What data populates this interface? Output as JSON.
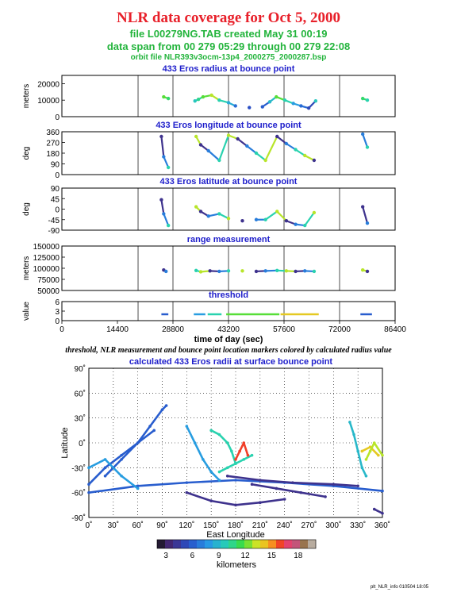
{
  "header": {
    "title": "NLR data coverage for Oct 5, 2000",
    "file_line": "file L00279NG.TAB created May 31 00:19",
    "span_line": "data span from 00 279 05:29 through 00 279 22:08",
    "orbit_line": "orbit file NLR393v3ocm-13p4_2000275_2000287.bsp"
  },
  "caption": "threshold, NLR measurement and bounce point location markers colored by calculated radius value",
  "footer": "plt_NLR_info 010504 18:05",
  "colors": {
    "title": "#e8202a",
    "subtitle": "#23b43c",
    "panel_title": "#1e1ecb"
  },
  "chart_data": [
    {
      "type": "scatter",
      "title": "433 Eros radius at bounce point",
      "ylabel": "meters",
      "ylim": [
        0,
        25000
      ],
      "yticks": [
        0,
        10000,
        20000
      ],
      "xlim": [
        0,
        86400
      ],
      "vlines": [
        19752,
        28800,
        43200,
        57600,
        72000
      ],
      "series": [
        {
          "x": [
            26400,
            27600,
            34500,
            35400,
            36600,
            38800,
            40800,
            43200,
            45000,
            48600,
            52000,
            53900,
            55600,
            57800,
            60000,
            62000,
            64000,
            65800,
            78000,
            79200
          ],
          "y": [
            12000,
            11000,
            9500,
            10500,
            12000,
            13000,
            10000,
            8500,
            6500,
            5500,
            6000,
            9000,
            12000,
            10000,
            8000,
            6500,
            5200,
            9500,
            11000,
            10000
          ],
          "color_by": "radius_km"
        }
      ]
    },
    {
      "type": "scatter",
      "title": "433 Eros longitude at bounce point",
      "ylabel": "deg",
      "ylim": [
        0,
        360
      ],
      "yticks": [
        0,
        90,
        180,
        270,
        360
      ],
      "xlim": [
        0,
        86400
      ],
      "vlines": [
        19752,
        28800,
        43200,
        57600,
        72000
      ],
      "series": [
        {
          "x": [
            25800,
            26400,
            27600,
            34800,
            36000,
            38000,
            40800,
            43200,
            45600,
            48000,
            50400,
            52800,
            55800,
            58200,
            60600,
            63000,
            65400,
            78000,
            79200
          ],
          "y": [
            320,
            150,
            60,
            320,
            250,
            200,
            120,
            330,
            300,
            240,
            180,
            120,
            320,
            260,
            210,
            160,
            120,
            340,
            230
          ],
          "color_by": "radius_km"
        }
      ]
    },
    {
      "type": "scatter",
      "title": "433 Eros latitude at bounce point",
      "ylabel": "deg",
      "ylim": [
        -90,
        90
      ],
      "yticks": [
        -90,
        -45,
        0,
        45,
        90
      ],
      "xlim": [
        0,
        86400
      ],
      "vlines": [
        19752,
        28800,
        43200,
        57600,
        72000
      ],
      "series": [
        {
          "x": [
            25800,
            26400,
            27600,
            34800,
            36000,
            38000,
            40800,
            43200,
            46800,
            50400,
            52800,
            55800,
            58200,
            60600,
            63000,
            65400,
            78000,
            79200
          ],
          "y": [
            40,
            -20,
            -70,
            10,
            -10,
            -30,
            -20,
            -40,
            -50,
            -45,
            -45,
            -10,
            -50,
            -65,
            -70,
            -15,
            10,
            -60
          ],
          "color_by": "radius_km"
        }
      ]
    },
    {
      "type": "scatter",
      "title": "range measurement",
      "ylabel": "meters",
      "ylim": [
        50000,
        150000
      ],
      "yticks": [
        50000,
        75000,
        100000,
        125000,
        150000
      ],
      "xlim": [
        0,
        86400
      ],
      "vlines": [
        19752,
        28800,
        43200,
        57600,
        72000
      ],
      "series": [
        {
          "x": [
            26400,
            27000,
            34800,
            36000,
            38400,
            40800,
            43200,
            46800,
            50400,
            52800,
            55800,
            58200,
            60600,
            63000,
            65400,
            78000,
            79200
          ],
          "y": [
            96000,
            93000,
            95000,
            92000,
            94000,
            93000,
            94000,
            94000,
            93000,
            94000,
            95000,
            94000,
            93000,
            94000,
            93000,
            96000,
            93000
          ],
          "color_by": "radius_km"
        }
      ]
    },
    {
      "type": "scatter",
      "title": "threshold",
      "ylabel": "value",
      "xlabel": "time of day (sec)",
      "ylim": [
        0,
        6
      ],
      "yticks": [
        0,
        3,
        6
      ],
      "xlim": [
        0,
        86400
      ],
      "xticks": [
        0,
        14400,
        28800,
        43200,
        57600,
        72000,
        86400
      ],
      "vlines": [
        19752,
        28800,
        43200,
        57600,
        72000
      ],
      "series": [
        {
          "segments": [
            [
              25800,
              27600
            ],
            [
              34200,
              37200
            ],
            [
              37800,
              41400
            ],
            [
              42600,
              56400
            ],
            [
              56700,
              66600
            ],
            [
              77400,
              80400
            ]
          ],
          "y": 2,
          "color_by": "radius_km"
        }
      ]
    },
    {
      "type": "scatter",
      "title": "calculated 433 Eros radii at surface bounce point",
      "xlabel": "East Longitude",
      "ylabel": "Latitude",
      "xlim": [
        0,
        360
      ],
      "ylim": [
        -90,
        90
      ],
      "xticks": [
        "0˚",
        "30˚",
        "60˚",
        "90˚",
        "120˚",
        "150˚",
        "180˚",
        "210˚",
        "240˚",
        "270˚",
        "300˚",
        "330˚",
        "360˚"
      ],
      "yticks": [
        "90˚",
        "60˚",
        "30˚",
        "0˚",
        "-30˚",
        "-60˚",
        "-90˚"
      ],
      "grid": true,
      "tracks": [
        {
          "lon": [
            20,
            40,
            60,
            75,
            90,
            95
          ],
          "lat": [
            -40,
            -20,
            0,
            20,
            40,
            45
          ],
          "radius_km": 6
        },
        {
          "lon": [
            0,
            20,
            40,
            60,
            80
          ],
          "lat": [
            -50,
            -30,
            -15,
            0,
            15
          ],
          "radius_km": 6
        },
        {
          "lon": [
            0,
            60,
            120,
            180,
            240,
            300,
            360
          ],
          "lat": [
            -60,
            -52,
            -48,
            -45,
            -48,
            -52,
            -58
          ],
          "radius_km": 6
        },
        {
          "lon": [
            200,
            230,
            260,
            290
          ],
          "lat": [
            -50,
            -55,
            -60,
            -65
          ],
          "radius_km": 4
        },
        {
          "lon": [
            170,
            210,
            250,
            300,
            330
          ],
          "lat": [
            -40,
            -45,
            -48,
            -50,
            -52
          ],
          "radius_km": 4
        },
        {
          "lon": [
            120,
            150,
            180,
            210,
            240
          ],
          "lat": [
            -60,
            -70,
            -75,
            -72,
            -68
          ],
          "radius_km": 4
        },
        {
          "lon": [
            0,
            20,
            40,
            60
          ],
          "lat": [
            -30,
            -20,
            -40,
            -55
          ],
          "radius_km": 8
        },
        {
          "lon": [
            120,
            130,
            140,
            150,
            160
          ],
          "lat": [
            20,
            0,
            -20,
            -35,
            -45
          ],
          "radius_km": 8
        },
        {
          "lon": [
            150,
            160,
            170,
            175,
            180
          ],
          "lat": [
            15,
            10,
            0,
            -10,
            -25
          ],
          "radius_km": 10
        },
        {
          "lon": [
            160,
            170,
            180,
            190,
            200
          ],
          "lat": [
            -35,
            -30,
            -25,
            -20,
            -15
          ],
          "radius_km": 10
        },
        {
          "lon": [
            320,
            325,
            330,
            335,
            340
          ],
          "lat": [
            25,
            10,
            -10,
            -30,
            -40
          ],
          "radius_km": 9
        },
        {
          "lon": [
            335,
            345,
            355
          ],
          "lat": [
            -10,
            -5,
            -15
          ],
          "radius_km": 14
        },
        {
          "lon": [
            340,
            345,
            350,
            360
          ],
          "lat": [
            -20,
            -10,
            0,
            -15
          ],
          "radius_km": 13
        },
        {
          "lon": [
            180,
            185,
            190,
            195
          ],
          "lat": [
            -20,
            -10,
            0,
            -15
          ],
          "radius_km": 16
        },
        {
          "lon": [
            350,
            360
          ],
          "lat": [
            -80,
            -85
          ],
          "radius_km": 4
        }
      ],
      "colorbar": {
        "ticks": [
          3,
          6,
          9,
          12,
          15,
          18
        ],
        "label": "kilometers",
        "range": [
          2,
          20
        ]
      }
    }
  ]
}
